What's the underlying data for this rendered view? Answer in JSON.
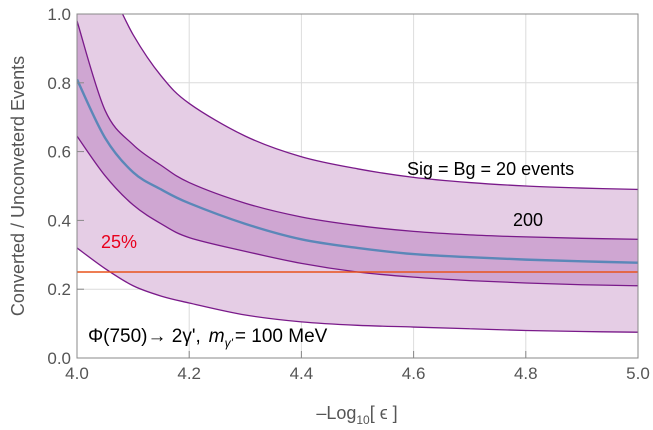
{
  "chart_data": {
    "type": "area",
    "xlabel": "–Log",
    "xlabel_sub": "10",
    "xlabel_tail": "[ ϵ ]",
    "ylabel": "Converted / Unconveterd Events",
    "xlim": [
      4.0,
      5.0
    ],
    "ylim": [
      0.0,
      1.0
    ],
    "x_ticks": [
      "4.0",
      "4.2",
      "4.4",
      "4.6",
      "4.8",
      "5.0"
    ],
    "y_ticks": [
      "0.0",
      "0.2",
      "0.4",
      "0.6",
      "0.8",
      "1.0"
    ],
    "grid": true,
    "x": [
      4.0,
      4.05,
      4.1,
      4.15,
      4.2,
      4.3,
      4.4,
      4.5,
      4.6,
      4.7,
      4.8,
      4.9,
      5.0
    ],
    "series": [
      {
        "name": "central",
        "values": [
          0.81,
          0.64,
          0.54,
          0.49,
          0.45,
          0.39,
          0.345,
          0.32,
          0.302,
          0.293,
          0.286,
          0.281,
          0.277
        ]
      },
      {
        "name": "band_200_upper",
        "values": [
          0.98,
          0.72,
          0.62,
          0.56,
          0.51,
          0.45,
          0.41,
          0.385,
          0.368,
          0.358,
          0.352,
          0.348,
          0.345
        ]
      },
      {
        "name": "band_200_lower",
        "values": [
          0.645,
          0.53,
          0.445,
          0.39,
          0.35,
          0.31,
          0.275,
          0.25,
          0.235,
          0.225,
          0.218,
          0.213,
          0.21
        ]
      },
      {
        "name": "band_20_upper",
        "values": [
          1.2,
          1.1,
          0.94,
          0.82,
          0.74,
          0.645,
          0.585,
          0.55,
          0.525,
          0.51,
          0.5,
          0.494,
          0.49
        ]
      },
      {
        "name": "band_20_lower",
        "values": [
          0.32,
          0.26,
          0.21,
          0.18,
          0.16,
          0.125,
          0.105,
          0.095,
          0.09,
          0.085,
          0.08,
          0.077,
          0.075
        ]
      }
    ],
    "reference_line": {
      "y": 0.25,
      "label": "25%",
      "color": "#e8531c"
    },
    "annotations": {
      "band_20": "Sig = Bg = 20 events",
      "band_200": "200"
    },
    "colors": {
      "outer_band": "#e5cde5",
      "inner_band": "#cfa6d2",
      "band_edge": "#7a1a8a",
      "central": "#5b87b8"
    }
  },
  "note": {
    "phi": "Φ(750)→ 2γ',",
    "m": "m",
    "m_sub": "γ'",
    "value": "= 100 MeV"
  }
}
